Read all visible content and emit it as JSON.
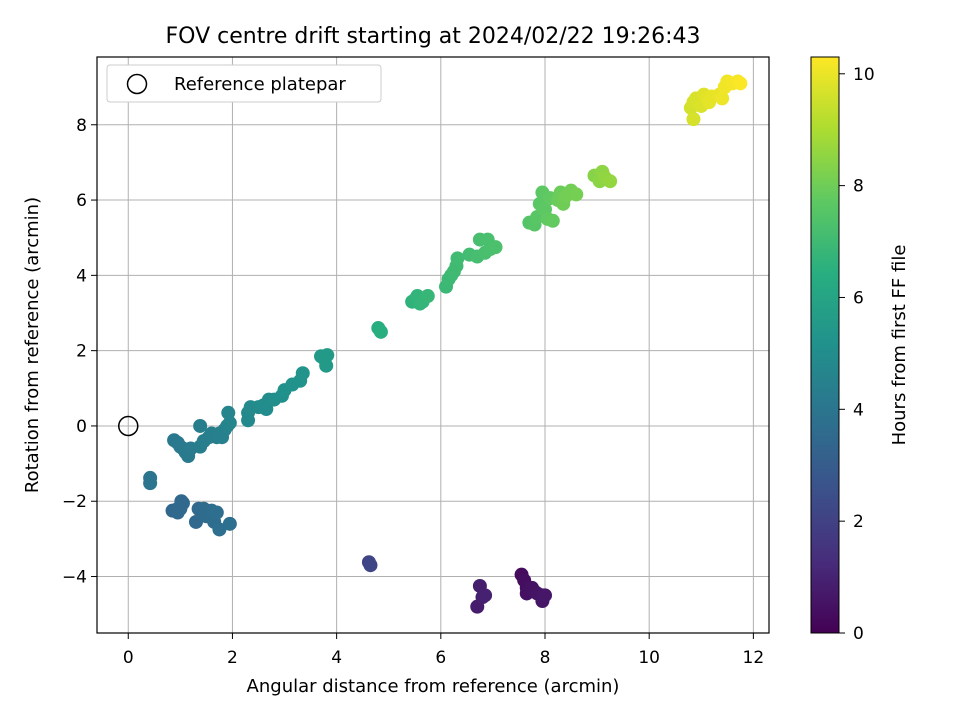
{
  "chart_data": {
    "type": "scatter",
    "title": "FOV centre drift starting at 2024/02/22 19:26:43",
    "xlabel": "Angular distance from reference (arcmin)",
    "ylabel": "Rotation from reference (arcmin)",
    "xlim": [
      -0.6,
      12.3
    ],
    "ylim": [
      -5.5,
      9.8
    ],
    "xticks": [
      0,
      2,
      4,
      6,
      8,
      10,
      12
    ],
    "yticks": [
      -4,
      -2,
      0,
      2,
      4,
      6,
      8
    ],
    "grid": true,
    "legend": {
      "location": "top-left",
      "entries": [
        "Reference platepar"
      ]
    },
    "reference_point": {
      "x": 0,
      "y": 0
    },
    "colorbar": {
      "label": "Hours from first FF file",
      "range": [
        0,
        10.3
      ],
      "ticks": [
        0,
        2,
        4,
        6,
        8,
        10
      ],
      "colormap": "viridis"
    },
    "series": [
      {
        "columns": [
          "x",
          "y",
          "hours"
        ],
        "points": [
          [
            7.55,
            -3.95,
            0.3
          ],
          [
            7.6,
            -4.1,
            0.35
          ],
          [
            7.65,
            -4.3,
            0.4
          ],
          [
            7.65,
            -4.45,
            0.45
          ],
          [
            7.75,
            -4.3,
            0.5
          ],
          [
            7.8,
            -4.4,
            0.5
          ],
          [
            7.85,
            -4.45,
            0.55
          ],
          [
            7.95,
            -4.5,
            0.6
          ],
          [
            7.95,
            -4.65,
            0.6
          ],
          [
            8.0,
            -4.5,
            0.65
          ],
          [
            6.7,
            -4.8,
            0.8
          ],
          [
            6.75,
            -4.25,
            0.85
          ],
          [
            6.8,
            -4.55,
            0.9
          ],
          [
            6.85,
            -4.5,
            0.95
          ],
          [
            4.62,
            -3.62,
            2.1
          ],
          [
            4.65,
            -3.7,
            2.15
          ],
          [
            0.85,
            -2.25,
            3.4
          ],
          [
            0.95,
            -2.2,
            3.4
          ],
          [
            0.95,
            -2.3,
            3.45
          ],
          [
            1.0,
            -2.2,
            3.45
          ],
          [
            1.05,
            -2.05,
            3.5
          ],
          [
            1.02,
            -2.0,
            3.5
          ],
          [
            1.3,
            -2.55,
            3.5
          ],
          [
            1.35,
            -2.2,
            3.5
          ],
          [
            1.4,
            -2.3,
            3.55
          ],
          [
            1.45,
            -2.2,
            3.55
          ],
          [
            1.5,
            -2.25,
            3.6
          ],
          [
            1.5,
            -2.4,
            3.6
          ],
          [
            1.55,
            -2.3,
            3.6
          ],
          [
            1.6,
            -2.25,
            3.65
          ],
          [
            1.65,
            -2.55,
            3.65
          ],
          [
            1.7,
            -2.3,
            3.7
          ],
          [
            1.75,
            -2.75,
            3.7
          ],
          [
            1.95,
            -2.6,
            3.75
          ],
          [
            0.42,
            -1.38,
            4.0
          ],
          [
            0.42,
            -1.52,
            4.0
          ],
          [
            0.88,
            -0.38,
            4.1
          ],
          [
            0.95,
            -0.45,
            4.1
          ],
          [
            1.0,
            -0.55,
            4.15
          ],
          [
            1.05,
            -0.6,
            4.15
          ],
          [
            1.1,
            -0.7,
            4.2
          ],
          [
            1.15,
            -0.8,
            4.2
          ],
          [
            1.2,
            -0.6,
            4.25
          ],
          [
            1.38,
            0.0,
            4.3
          ],
          [
            1.38,
            -0.55,
            4.3
          ],
          [
            1.45,
            -0.4,
            4.35
          ],
          [
            1.55,
            -0.3,
            4.35
          ],
          [
            1.6,
            -0.2,
            4.4
          ],
          [
            1.7,
            -0.3,
            4.4
          ],
          [
            1.75,
            -0.2,
            4.45
          ],
          [
            1.8,
            -0.3,
            4.45
          ],
          [
            1.85,
            -0.1,
            4.5
          ],
          [
            1.9,
            0.0,
            4.55
          ],
          [
            1.95,
            0.08,
            4.6
          ],
          [
            1.92,
            0.35,
            4.6
          ],
          [
            2.3,
            0.15,
            4.8
          ],
          [
            2.3,
            0.35,
            4.8
          ],
          [
            2.35,
            0.5,
            4.85
          ],
          [
            2.5,
            0.5,
            4.9
          ],
          [
            2.6,
            0.55,
            4.95
          ],
          [
            2.65,
            0.45,
            5.0
          ],
          [
            2.7,
            0.7,
            5.0
          ],
          [
            2.8,
            0.7,
            5.05
          ],
          [
            2.95,
            0.8,
            5.1
          ],
          [
            3.0,
            0.95,
            5.15
          ],
          [
            3.15,
            1.1,
            5.2
          ],
          [
            3.3,
            1.2,
            5.25
          ],
          [
            3.35,
            1.4,
            5.3
          ],
          [
            3.7,
            1.85,
            5.5
          ],
          [
            3.75,
            1.8,
            5.5
          ],
          [
            3.8,
            1.6,
            5.55
          ],
          [
            3.82,
            1.88,
            5.55
          ],
          [
            4.8,
            2.6,
            6.4
          ],
          [
            4.85,
            2.5,
            6.45
          ],
          [
            5.45,
            3.3,
            6.6
          ],
          [
            5.5,
            3.35,
            6.65
          ],
          [
            5.55,
            3.45,
            6.7
          ],
          [
            5.6,
            3.25,
            6.7
          ],
          [
            5.65,
            3.3,
            6.75
          ],
          [
            5.75,
            3.45,
            6.8
          ],
          [
            6.1,
            3.7,
            6.9
          ],
          [
            6.15,
            3.9,
            6.95
          ],
          [
            6.2,
            4.0,
            6.95
          ],
          [
            6.25,
            4.1,
            7.0
          ],
          [
            6.3,
            4.25,
            7.0
          ],
          [
            6.32,
            4.45,
            7.05
          ],
          [
            6.55,
            4.55,
            7.1
          ],
          [
            6.7,
            4.5,
            7.15
          ],
          [
            6.75,
            4.95,
            7.2
          ],
          [
            6.85,
            4.6,
            7.2
          ],
          [
            6.9,
            4.95,
            7.25
          ],
          [
            6.95,
            4.7,
            7.25
          ],
          [
            7.05,
            4.75,
            7.3
          ],
          [
            7.7,
            5.4,
            7.5
          ],
          [
            7.8,
            5.35,
            7.55
          ],
          [
            7.85,
            5.55,
            7.6
          ],
          [
            7.9,
            5.9,
            7.65
          ],
          [
            7.95,
            6.2,
            7.7
          ],
          [
            8.0,
            5.75,
            7.7
          ],
          [
            8.05,
            5.5,
            7.75
          ],
          [
            8.1,
            6.05,
            7.75
          ],
          [
            8.15,
            5.45,
            7.8
          ],
          [
            8.25,
            6.0,
            7.9
          ],
          [
            8.3,
            6.2,
            7.95
          ],
          [
            8.35,
            5.9,
            8.0
          ],
          [
            8.4,
            6.1,
            8.05
          ],
          [
            8.5,
            6.25,
            8.05
          ],
          [
            8.6,
            6.15,
            8.1
          ],
          [
            8.95,
            6.65,
            8.4
          ],
          [
            9.05,
            6.5,
            8.45
          ],
          [
            9.1,
            6.75,
            8.5
          ],
          [
            9.15,
            6.6,
            8.55
          ],
          [
            9.25,
            6.5,
            8.6
          ],
          [
            10.8,
            8.45,
            9.6
          ],
          [
            10.85,
            8.6,
            9.65
          ],
          [
            10.85,
            8.15,
            9.65
          ],
          [
            10.9,
            8.7,
            9.7
          ],
          [
            11.0,
            8.5,
            9.75
          ],
          [
            11.05,
            8.8,
            9.8
          ],
          [
            11.1,
            8.7,
            9.85
          ],
          [
            11.15,
            8.6,
            9.9
          ],
          [
            11.2,
            8.75,
            9.95
          ],
          [
            11.35,
            8.8,
            10.0
          ],
          [
            11.4,
            8.7,
            10.05
          ],
          [
            11.45,
            9.0,
            10.1
          ],
          [
            11.5,
            9.15,
            10.1
          ],
          [
            11.6,
            9.1,
            10.15
          ],
          [
            11.7,
            9.15,
            10.2
          ],
          [
            11.75,
            9.1,
            10.25
          ]
        ]
      }
    ]
  }
}
